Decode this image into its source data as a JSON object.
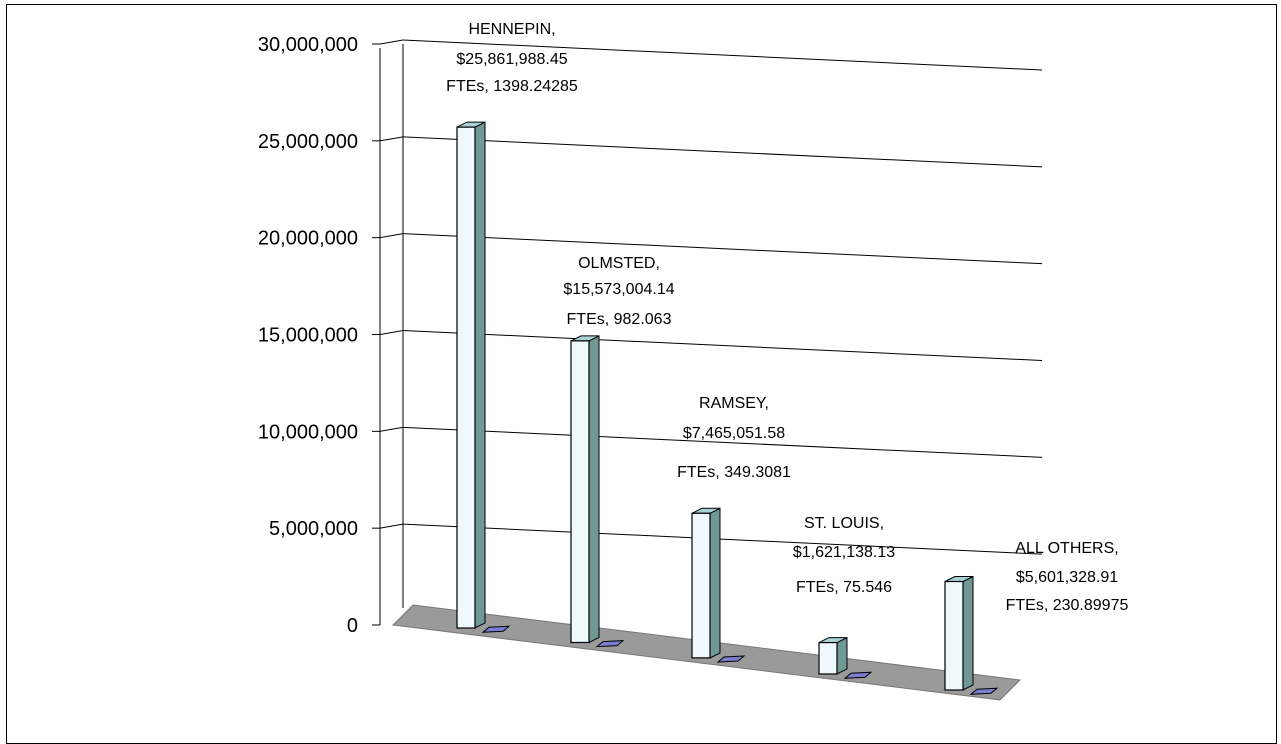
{
  "chart_data": {
    "type": "bar",
    "title": "",
    "xlabel": "",
    "ylabel": "",
    "ylim": [
      0,
      30000000
    ],
    "yticks": [
      0,
      5000000,
      10000000,
      15000000,
      20000000,
      25000000,
      30000000
    ],
    "ytick_labels": [
      "0",
      "5,000,000",
      "10,000,000",
      "15,000,000",
      "20,000,000",
      "25,000,000",
      "30,000,000"
    ],
    "grid": true,
    "three_d": true,
    "categories": [
      "HENNEPIN",
      "OLMSTED",
      "RAMSEY",
      "ST. LOUIS",
      "ALL OTHERS"
    ],
    "series": [
      {
        "name": "",
        "values": [
          25861988.45,
          15573004.14,
          7465051.58,
          1621138.13,
          5601328.91
        ]
      },
      {
        "name": "FTEs",
        "values": [
          1398.24285,
          982.063,
          349.3081,
          75.546,
          230.89975
        ]
      }
    ],
    "data_labels": [
      [
        "HENNEPIN,",
        "$25,861,988.45",
        "FTEs, 1398.24285"
      ],
      [
        "OLMSTED,",
        "$15,573,004.14",
        "FTEs, 982.063"
      ],
      [
        "RAMSEY,",
        "$7,465,051.58",
        "FTEs, 349.3081"
      ],
      [
        "ST. LOUIS,",
        "$1,621,138.13",
        "FTEs, 75.546"
      ],
      [
        "ALL OTHERS,",
        "$5,601,328.91",
        "FTEs, 230.89975"
      ]
    ],
    "colors": {
      "bar_front": "#eef8fd",
      "bar_side": "#6f9896",
      "bar_top": "#a8d2d8",
      "fte_marker": "#7a7fd0",
      "floor": "#9a9a9a",
      "grid": "#000000"
    }
  }
}
